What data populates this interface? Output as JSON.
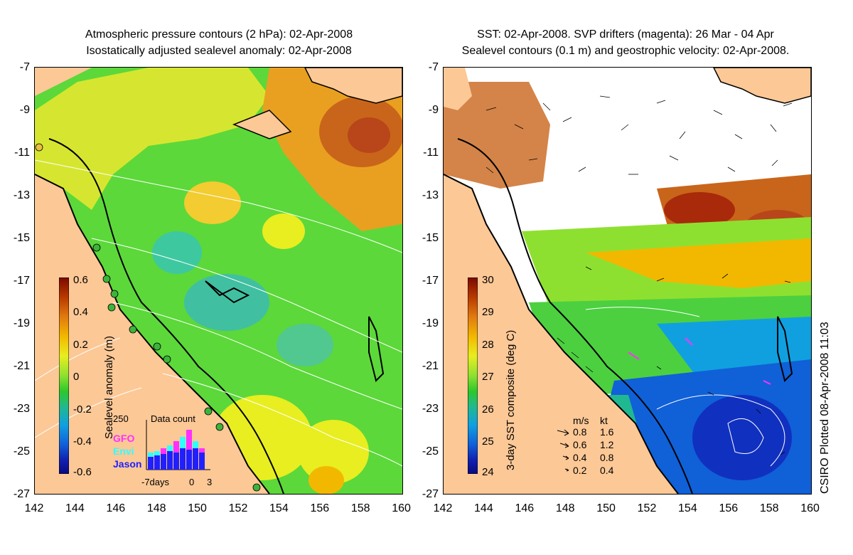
{
  "left_panel": {
    "title_line1": "Atmospheric pressure contours (2 hPa): 02-Apr-2008",
    "title_line2": "Isostatically adjusted sealevel anomaly: 02-Apr-2008",
    "colorbar": {
      "label": "Sealevel anomaly (m)",
      "ticks": [
        "0.6",
        "0.4",
        "0.2",
        "0",
        "-0.2",
        "-0.4",
        "-0.6"
      ],
      "colors": [
        "#7a0a00",
        "#b83a00",
        "#e07a10",
        "#f2b800",
        "#e8ee20",
        "#8ee030",
        "#2cc82c",
        "#20b890",
        "#10a0e0",
        "#1060d8",
        "#1020b0",
        "#0a0a80"
      ]
    },
    "inset": {
      "title": "Data count",
      "max_label": "250",
      "x_labels": [
        "-7days",
        "0",
        "3"
      ],
      "series": [
        {
          "name": "GFO",
          "color": "#ff30ff"
        },
        {
          "name": "Envi",
          "color": "#30ffff"
        },
        {
          "name": "Jason",
          "color": "#2020ff"
        }
      ]
    }
  },
  "right_panel": {
    "title_line1": "SST: 02-Apr-2008. SVP drifters (magenta): 26 Mar - 04 Apr",
    "title_line2": "Sealevel contours (0.1 m) and geostrophic velocity: 02-Apr-2008.",
    "colorbar": {
      "label": "3-day SST composite (deg C)",
      "ticks": [
        "30",
        "29",
        "28",
        "27",
        "26",
        "25",
        "24"
      ],
      "colors": [
        "#7a0a00",
        "#b83a00",
        "#e07a10",
        "#f2b800",
        "#e8ee20",
        "#8ee030",
        "#2cc82c",
        "#20b890",
        "#10a0e0",
        "#1060d8",
        "#1020b0",
        "#0a0a80"
      ]
    },
    "velocity_legend": {
      "header_ms": "m/s",
      "header_kt": "kt",
      "rows": [
        {
          "ms": "0.8",
          "kt": "1.6"
        },
        {
          "ms": "0.6",
          "kt": "1.2"
        },
        {
          "ms": "0.4",
          "kt": "0.8"
        },
        {
          "ms": "0.2",
          "kt": "0.4"
        }
      ]
    }
  },
  "axes": {
    "lat_ticks": [
      "-7",
      "-9",
      "-11",
      "-13",
      "-15",
      "-17",
      "-19",
      "-21",
      "-23",
      "-25",
      "-27"
    ],
    "lon_ticks": [
      "142",
      "144",
      "146",
      "148",
      "150",
      "152",
      "154",
      "156",
      "158",
      "160"
    ]
  },
  "credit": "CSIRO Plotted 08-Apr-2008 11:03",
  "colors": {
    "land": "#fcc896",
    "coast": "#000000",
    "contour": "#ffffff",
    "drifter": "#ff30ff"
  }
}
